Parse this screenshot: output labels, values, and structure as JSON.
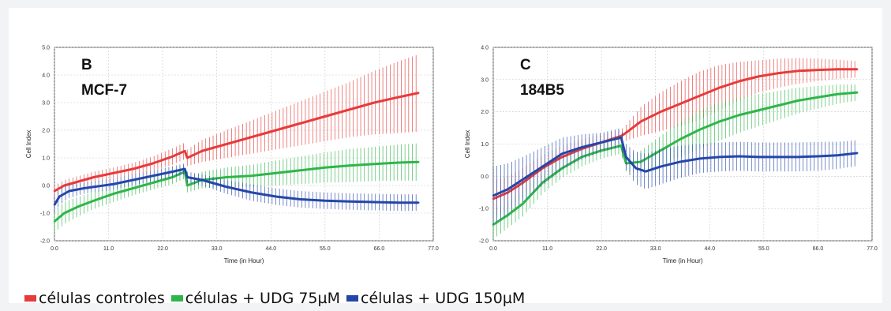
{
  "colors": {
    "control": "#e63b3b",
    "udg75": "#2fb54a",
    "udg150": "#2446a8",
    "grid": "#c8c8c8"
  },
  "legend": [
    {
      "label": "células controles",
      "color": "#e63b3b"
    },
    {
      "label": "células + UDG 75µM",
      "color": "#2fb54a"
    },
    {
      "label": "células + UDG 150µM",
      "color": "#2446a8"
    }
  ],
  "chart_data": [
    {
      "type": "line",
      "panel_letter": "B",
      "panel_name": "MCF-7",
      "xlabel": "Time (in Hour)",
      "ylabel": "Cell Index",
      "xlim": [
        0,
        77
      ],
      "ylim": [
        -2,
        5
      ],
      "xticks": [
        "0.0",
        "11.0",
        "22.0",
        "33.0",
        "44.0",
        "55.0",
        "66.0",
        "77.0"
      ],
      "yticks": [
        "-2.0",
        "-1.0",
        "0.0",
        "1.0",
        "2.0",
        "3.0",
        "4.0",
        "5.0"
      ],
      "grid": true,
      "series": [
        {
          "key": "control",
          "x": [
            0,
            2,
            5,
            8,
            12,
            16,
            20,
            24,
            26.5,
            27,
            30,
            35,
            40,
            45,
            50,
            55,
            60,
            65,
            70,
            74
          ],
          "y": [
            -0.2,
            0.0,
            0.15,
            0.3,
            0.45,
            0.6,
            0.8,
            1.05,
            1.25,
            1.0,
            1.25,
            1.5,
            1.75,
            2.0,
            2.25,
            2.5,
            2.75,
            3.0,
            3.2,
            3.35
          ],
          "err": [
            0.2,
            0.2,
            0.2,
            0.2,
            0.2,
            0.22,
            0.25,
            0.3,
            0.3,
            0.3,
            0.4,
            0.5,
            0.6,
            0.7,
            0.8,
            0.9,
            1.0,
            1.15,
            1.3,
            1.4
          ]
        },
        {
          "key": "udg75",
          "x": [
            0,
            2,
            5,
            8,
            12,
            16,
            20,
            24,
            26.5,
            27,
            30,
            35,
            40,
            45,
            50,
            55,
            60,
            65,
            70,
            74
          ],
          "y": [
            -1.3,
            -1.0,
            -0.75,
            -0.55,
            -0.3,
            -0.1,
            0.1,
            0.3,
            0.5,
            0.0,
            0.2,
            0.3,
            0.35,
            0.45,
            0.55,
            0.65,
            0.72,
            0.78,
            0.83,
            0.85
          ],
          "err": [
            0.4,
            0.4,
            0.35,
            0.3,
            0.3,
            0.25,
            0.25,
            0.25,
            0.25,
            0.25,
            0.3,
            0.35,
            0.4,
            0.45,
            0.5,
            0.55,
            0.6,
            0.62,
            0.65,
            0.68
          ]
        },
        {
          "key": "udg150",
          "x": [
            0,
            1,
            3,
            6,
            8,
            12,
            16,
            20,
            24,
            26.5,
            27,
            30,
            35,
            40,
            45,
            50,
            55,
            60,
            65,
            70,
            74
          ],
          "y": [
            -0.7,
            -0.4,
            -0.2,
            -0.1,
            -0.05,
            0.05,
            0.2,
            0.35,
            0.5,
            0.6,
            0.3,
            0.2,
            -0.05,
            -0.25,
            -0.4,
            -0.5,
            -0.55,
            -0.58,
            -0.6,
            -0.62,
            -0.62
          ],
          "err": [
            0.3,
            0.3,
            0.25,
            0.2,
            0.2,
            0.2,
            0.2,
            0.2,
            0.2,
            0.2,
            0.2,
            0.2,
            0.25,
            0.3,
            0.3,
            0.3,
            0.3,
            0.3,
            0.3,
            0.3,
            0.3
          ]
        }
      ]
    },
    {
      "type": "line",
      "panel_letter": "C",
      "panel_name": "184B5",
      "xlabel": "Time (in Hour)",
      "ylabel": "Cell Index",
      "xlim": [
        0,
        77
      ],
      "ylim": [
        -2,
        4
      ],
      "xticks": [
        "0.0",
        "11.0",
        "22.0",
        "33.0",
        "44.0",
        "55.0",
        "66.0",
        "77.0"
      ],
      "yticks": [
        "-2.0",
        "-1.0",
        "0.0",
        "1.0",
        "2.0",
        "3.0",
        "4.0"
      ],
      "grid": true,
      "series": [
        {
          "key": "control",
          "x": [
            0,
            3,
            6,
            10,
            14,
            18,
            22,
            26,
            27,
            30,
            34,
            38,
            42,
            46,
            50,
            54,
            58,
            62,
            66,
            70,
            74
          ],
          "y": [
            -0.7,
            -0.5,
            -0.2,
            0.25,
            0.6,
            0.85,
            1.05,
            1.25,
            1.35,
            1.7,
            2.0,
            2.25,
            2.5,
            2.75,
            2.95,
            3.1,
            3.2,
            3.27,
            3.3,
            3.32,
            3.32
          ],
          "err": [
            0.6,
            0.5,
            0.45,
            0.4,
            0.35,
            0.3,
            0.25,
            0.2,
            0.25,
            0.45,
            0.6,
            0.7,
            0.75,
            0.7,
            0.6,
            0.5,
            0.45,
            0.4,
            0.35,
            0.3,
            0.25
          ]
        },
        {
          "key": "udg75",
          "x": [
            0,
            3,
            6,
            10,
            14,
            18,
            22,
            26,
            27,
            30,
            34,
            38,
            42,
            46,
            50,
            54,
            58,
            62,
            66,
            70,
            74
          ],
          "y": [
            -1.5,
            -1.2,
            -0.85,
            -0.2,
            0.25,
            0.6,
            0.8,
            0.95,
            0.4,
            0.45,
            0.8,
            1.15,
            1.45,
            1.7,
            1.9,
            2.05,
            2.2,
            2.35,
            2.45,
            2.55,
            2.6
          ],
          "err": [
            0.45,
            0.4,
            0.4,
            0.35,
            0.3,
            0.3,
            0.25,
            0.25,
            0.25,
            0.35,
            0.45,
            0.55,
            0.6,
            0.6,
            0.55,
            0.5,
            0.45,
            0.4,
            0.35,
            0.3,
            0.25
          ]
        },
        {
          "key": "udg150",
          "x": [
            0,
            3,
            6,
            10,
            14,
            18,
            22,
            26,
            27,
            29,
            31,
            34,
            38,
            42,
            46,
            50,
            54,
            58,
            62,
            66,
            70,
            74
          ],
          "y": [
            -0.6,
            -0.4,
            -0.1,
            0.3,
            0.7,
            0.9,
            1.05,
            1.2,
            0.6,
            0.25,
            0.15,
            0.3,
            0.45,
            0.55,
            0.6,
            0.62,
            0.6,
            0.6,
            0.6,
            0.62,
            0.65,
            0.72
          ],
          "err": [
            0.9,
            0.8,
            0.7,
            0.6,
            0.5,
            0.4,
            0.3,
            0.3,
            0.4,
            0.5,
            0.55,
            0.55,
            0.5,
            0.45,
            0.45,
            0.45,
            0.45,
            0.45,
            0.45,
            0.45,
            0.42,
            0.4
          ]
        }
      ]
    }
  ]
}
